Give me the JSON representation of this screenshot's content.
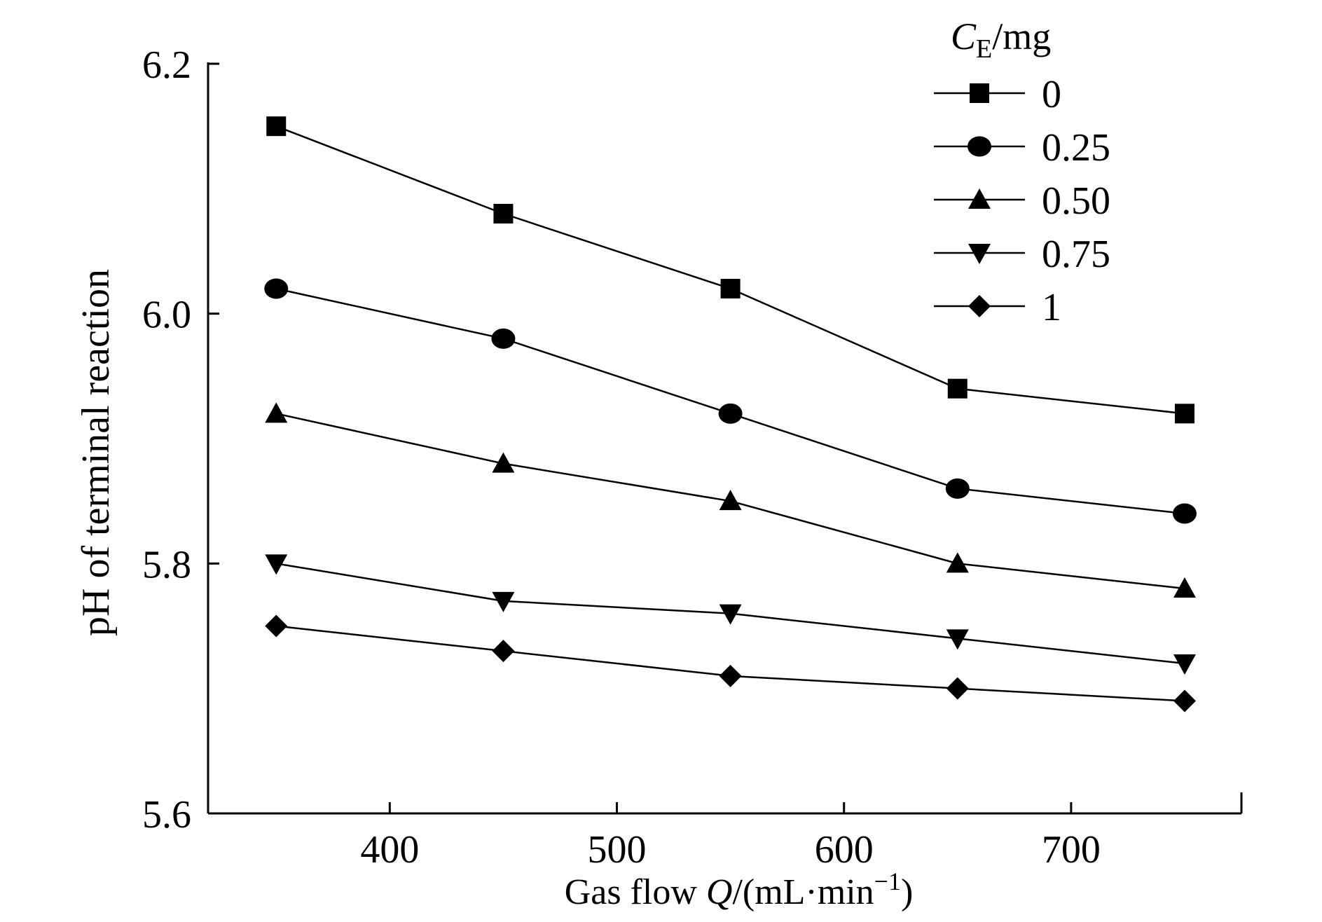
{
  "chart_data": {
    "type": "line",
    "title": "",
    "xlabel": {
      "prefix": "Gas flow ",
      "var": "Q",
      "unit_open": "/(mL·min",
      "unit_exp": "−1",
      "unit_close": ")"
    },
    "ylabel": "pH of terminal reaction",
    "xlim": [
      320,
      775
    ],
    "ylim": [
      5.6,
      6.2
    ],
    "xticks": [
      400,
      500,
      600,
      700
    ],
    "xtick_labels": [
      "400",
      "500",
      "600",
      "700"
    ],
    "yticks": [
      5.6,
      5.8,
      6.0,
      6.2
    ],
    "ytick_labels": [
      "5.6",
      "5.8",
      "6.0",
      "6.2"
    ],
    "x": [
      350,
      450,
      550,
      650,
      750
    ],
    "legend": {
      "title_var": "C",
      "title_sub": "E",
      "title_unit": "/mg",
      "placement": "top-right"
    },
    "series": [
      {
        "name": "0",
        "marker": "square",
        "values": [
          6.15,
          6.08,
          6.02,
          5.94,
          5.92
        ]
      },
      {
        "name": "0.25",
        "marker": "circle",
        "values": [
          6.02,
          5.98,
          5.92,
          5.86,
          5.84
        ]
      },
      {
        "name": "0.50",
        "marker": "triangle-up",
        "values": [
          5.92,
          5.88,
          5.85,
          5.8,
          5.78
        ]
      },
      {
        "name": "0.75",
        "marker": "triangle-down",
        "values": [
          5.8,
          5.77,
          5.76,
          5.74,
          5.72
        ]
      },
      {
        "name": "1",
        "marker": "diamond",
        "values": [
          5.75,
          5.73,
          5.71,
          5.7,
          5.69
        ]
      }
    ],
    "colors": {
      "line": "#000000",
      "background": "#ffffff"
    }
  }
}
